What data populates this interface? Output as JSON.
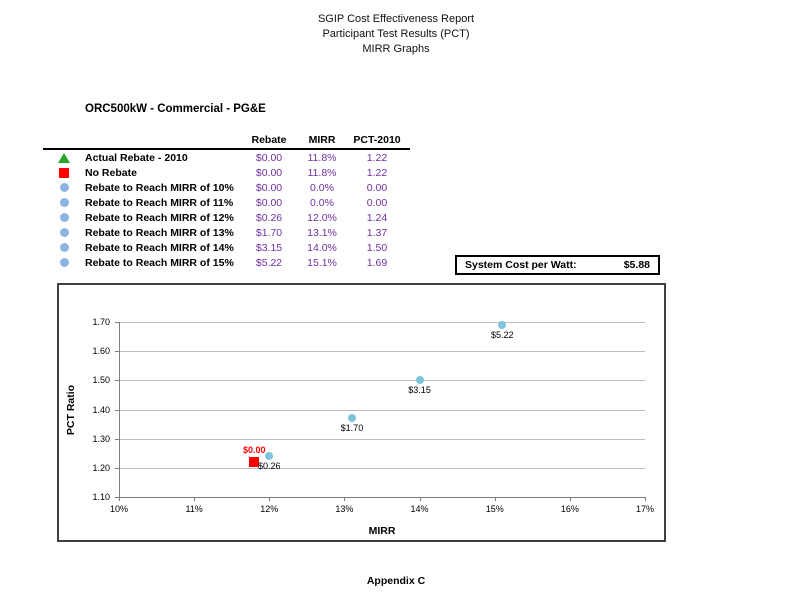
{
  "page": {
    "title_lines": [
      "SGIP Cost Effectiveness Report",
      "Participant Test Results (PCT)",
      "MIRR Graphs"
    ],
    "section_title": "ORC500kW  - Commercial - PG&E",
    "footer": "Appendix C"
  },
  "table": {
    "headers": [
      "Rebate",
      "MIRR",
      "PCT-2010"
    ],
    "rows": [
      {
        "marker": "triangle-green",
        "label": "Actual Rebate - 2010",
        "rebate": "$0.00",
        "mirr": "11.8%",
        "pct": "1.22"
      },
      {
        "marker": "square-red",
        "label": "No Rebate",
        "rebate": "$0.00",
        "mirr": "11.8%",
        "pct": "1.22"
      },
      {
        "marker": "circle-blue",
        "label": "Rebate to Reach MIRR of 10%",
        "rebate": "$0.00",
        "mirr": "0.0%",
        "pct": "0.00"
      },
      {
        "marker": "circle-blue",
        "label": "Rebate to Reach MIRR of 11%",
        "rebate": "$0.00",
        "mirr": "0.0%",
        "pct": "0.00"
      },
      {
        "marker": "circle-blue",
        "label": "Rebate to Reach MIRR of 12%",
        "rebate": "$0.26",
        "mirr": "12.0%",
        "pct": "1.24"
      },
      {
        "marker": "circle-blue",
        "label": "Rebate to Reach MIRR of 13%",
        "rebate": "$1.70",
        "mirr": "13.1%",
        "pct": "1.37"
      },
      {
        "marker": "circle-blue",
        "label": "Rebate to Reach MIRR of 14%",
        "rebate": "$3.15",
        "mirr": "14.0%",
        "pct": "1.50"
      },
      {
        "marker": "circle-blue",
        "label": "Rebate to Reach MIRR of 15%",
        "rebate": "$5.22",
        "mirr": "15.1%",
        "pct": "1.69"
      }
    ]
  },
  "system_cost": {
    "label": "System Cost per Watt:",
    "value": "$5.88"
  },
  "chart_data": {
    "type": "scatter",
    "title": "",
    "xlabel": "MIRR",
    "ylabel": "PCT Ratio",
    "xlim": [
      10,
      17
    ],
    "ylim": [
      1.1,
      1.7
    ],
    "x_ticks": [
      "10%",
      "11%",
      "12%",
      "13%",
      "14%",
      "15%",
      "16%",
      "17%"
    ],
    "y_ticks": [
      "1.70",
      "1.60",
      "1.50",
      "1.40",
      "1.30",
      "1.20",
      "1.10"
    ],
    "grid": true,
    "legend_position": "table-above-chart",
    "series": [
      {
        "name": "Actual Rebate - 2010",
        "marker": "triangle-green",
        "points": [
          {
            "x": 11.8,
            "y": 1.22
          }
        ]
      },
      {
        "name": "No Rebate",
        "marker": "square-red",
        "points": [
          {
            "x": 11.8,
            "y": 1.22,
            "label": "$0.00",
            "label_pos": "above"
          }
        ]
      },
      {
        "name": "Rebate to Reach MIRR",
        "marker": "circle-blue",
        "points": [
          {
            "x": 12.0,
            "y": 1.24,
            "label": "$0.26",
            "label_pos": "below"
          },
          {
            "x": 13.1,
            "y": 1.37,
            "label": "$1.70",
            "label_pos": "below"
          },
          {
            "x": 14.0,
            "y": 1.5,
            "label": "$3.15",
            "label_pos": "below"
          },
          {
            "x": 15.1,
            "y": 1.69,
            "label": "$5.22",
            "label_pos": "below"
          }
        ]
      }
    ]
  },
  "colors": {
    "value_text": "#7030A0",
    "triangle_green": "#28A428",
    "square_red": "#FF0000",
    "legend_circle_blue": "#8DB4E2",
    "chart_circle_blue": "#7FC4DB",
    "gridline": "#BDBDBD",
    "axis": "#7F7F7F"
  }
}
